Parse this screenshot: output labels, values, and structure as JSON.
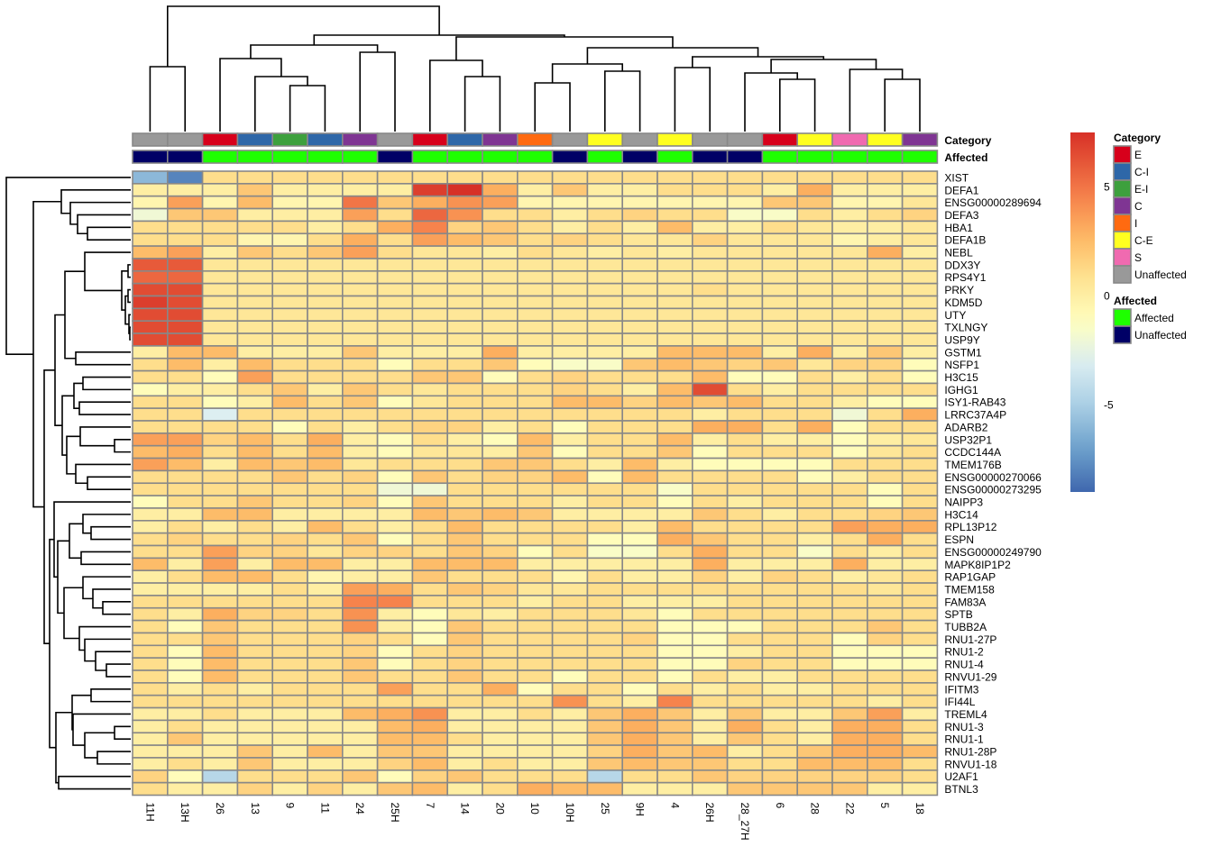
{
  "chart_data": {
    "type": "heatmap",
    "title": "",
    "columns": [
      "11H",
      "13H",
      "26",
      "13",
      "9",
      "11",
      "24",
      "25H",
      "7",
      "14",
      "20",
      "10",
      "10H",
      "25",
      "9H",
      "4",
      "26H",
      "28_27H",
      "6",
      "28",
      "22",
      "5",
      "18"
    ],
    "rows": [
      "XIST",
      "DEFA1",
      "ENSG00000289694",
      "DEFA3",
      "HBA1",
      "DEFA1B",
      "NEBL",
      "DDX3Y",
      "RPS4Y1",
      "PRKY",
      "KDM5D",
      "UTY",
      "TXLNGY",
      "USP9Y",
      "GSTM1",
      "NSFP1",
      "H3C15",
      "IGHG1",
      "ISY1-RAB43",
      "LRRC37A4P",
      "ADARB2",
      "USP32P1",
      "CCDC144A",
      "TMEM176B",
      "ENSG00000270066",
      "ENSG00000273295",
      "NAIPP3",
      "H3C14",
      "RPL13P12",
      "ESPN",
      "ENSG00000249790",
      "MAPK8IP1P2",
      "RAP1GAP",
      "TMEM158",
      "FAM83A",
      "SPTB",
      "TUBB2A",
      "RNU1-27P",
      "RNU1-2",
      "RNU1-4",
      "RNVU1-29",
      "IFITM3",
      "IFI44L",
      "TREML4",
      "RNU1-3",
      "RNU1-1",
      "RNU1-28P",
      "RNVU1-18",
      "U2AF1",
      "BTNL3"
    ],
    "values": [
      [
        -6,
        -8,
        1,
        1,
        1,
        1,
        1,
        1,
        1,
        1,
        1,
        1,
        1,
        1,
        1,
        1,
        1,
        1,
        1,
        1,
        1,
        1,
        1
      ],
      [
        0,
        0,
        0,
        2,
        0,
        0,
        0,
        0,
        7,
        7.5,
        3,
        0,
        2,
        0,
        0,
        1,
        1,
        1,
        0,
        3,
        0,
        0,
        0
      ],
      [
        -0.5,
        3.5,
        -0.5,
        2.5,
        -0.5,
        -0.5,
        5,
        2,
        3,
        4,
        3.5,
        -0.5,
        -0.5,
        -0.5,
        -0.5,
        -0.5,
        -0.5,
        -0.5,
        2,
        2,
        -0.5,
        -0.5,
        0.5
      ],
      [
        -2,
        2,
        2,
        0,
        0,
        0,
        3.5,
        1,
        5.5,
        4,
        1,
        1,
        0,
        1,
        1.5,
        1,
        1,
        -1.5,
        -1.5,
        1,
        0,
        1,
        1.5
      ],
      [
        1,
        1,
        1,
        1,
        1,
        0,
        1,
        3,
        4.5,
        1.5,
        2,
        1,
        0,
        1,
        0,
        2.5,
        0,
        0,
        1,
        0.5,
        0,
        0,
        0.5
      ],
      [
        1,
        1,
        1,
        -0.5,
        -0.5,
        1,
        3,
        1,
        3.5,
        2.5,
        2,
        1,
        1.5,
        1,
        0.5,
        0.5,
        1.5,
        0.5,
        0.5,
        0.5,
        -0.5,
        0,
        0.5
      ],
      [
        2.5,
        3.5,
        0,
        2,
        1,
        2,
        3.5,
        1,
        0.5,
        0.5,
        0,
        1,
        0.5,
        0,
        0.5,
        0,
        0.5,
        0.5,
        0.5,
        0.5,
        0.5,
        3,
        0
      ],
      [
        6,
        6,
        0.5,
        0.5,
        0.5,
        0.5,
        0.5,
        0.5,
        0.5,
        0.5,
        0.5,
        0.5,
        0.5,
        0.5,
        0.5,
        0.5,
        0.5,
        0.5,
        0.5,
        0.5,
        0.5,
        0.5,
        0.5
      ],
      [
        5.5,
        5.5,
        0.5,
        0.5,
        0.5,
        0.5,
        0.5,
        0.5,
        0.5,
        0.5,
        0.5,
        0.5,
        0.5,
        0.5,
        0.5,
        0.5,
        0.5,
        0.5,
        0.5,
        0.5,
        0.5,
        0.5,
        0.5
      ],
      [
        6.5,
        6.5,
        0.5,
        0.5,
        0.5,
        0.5,
        0.5,
        0.5,
        0.5,
        0.5,
        0.5,
        0.5,
        0.5,
        0.5,
        0.5,
        0.5,
        1,
        0.5,
        0.5,
        0.5,
        0.5,
        0.5,
        0.5
      ],
      [
        7,
        6.5,
        0.5,
        0.5,
        0.5,
        0.5,
        0.5,
        0.5,
        0.5,
        0.5,
        0.5,
        0.5,
        0.5,
        0.5,
        0.5,
        0.5,
        0.5,
        0.5,
        0.5,
        0.5,
        0.5,
        0.5,
        0.5
      ],
      [
        6.5,
        6.5,
        0.5,
        0.5,
        0.5,
        0.5,
        0.5,
        0.5,
        0.5,
        0.5,
        0.5,
        0.5,
        0.5,
        0.5,
        0.5,
        0.5,
        0.5,
        0.5,
        0.5,
        0.5,
        0.5,
        0.5,
        0.5
      ],
      [
        6.5,
        6.5,
        0.5,
        0.5,
        0.5,
        0.5,
        0.5,
        0.5,
        0.5,
        0.5,
        0.5,
        0.5,
        0.5,
        0.5,
        0.5,
        0.5,
        0.5,
        0.5,
        0.5,
        0.5,
        0.5,
        0.5,
        0.5
      ],
      [
        6.5,
        6.5,
        0.5,
        0.5,
        0.5,
        0.5,
        0.5,
        0.5,
        0.5,
        0.5,
        0.5,
        0.5,
        0.5,
        0.5,
        0.5,
        0.5,
        0.5,
        0.5,
        0.5,
        0.5,
        0.5,
        0.5,
        0.5
      ],
      [
        0,
        2.5,
        2.5,
        0,
        0,
        0,
        2,
        0,
        0,
        0,
        3,
        0,
        0,
        0,
        0,
        2.5,
        2.5,
        2.5,
        0,
        3,
        0,
        2,
        0
      ],
      [
        1,
        2.5,
        0,
        2.5,
        1,
        1,
        1,
        -1,
        1,
        1,
        2,
        -1,
        -1.5,
        -1.5,
        2,
        2.5,
        2,
        1.5,
        2,
        0.5,
        1.5,
        1.5,
        -1
      ],
      [
        1,
        1,
        -1,
        3.5,
        1,
        1,
        1,
        1,
        2,
        2,
        -1,
        1,
        1.5,
        1,
        1,
        1,
        2.5,
        -1,
        -1,
        1,
        0,
        1,
        -1
      ],
      [
        -1,
        0,
        0,
        1,
        2,
        0,
        2,
        1,
        0.5,
        1,
        1,
        1,
        1.5,
        1,
        0,
        2.5,
        6.5,
        1,
        0,
        1,
        1,
        1,
        1
      ],
      [
        1,
        1,
        -1,
        0,
        2.5,
        1,
        2,
        -1,
        0.5,
        1,
        1,
        1,
        2.5,
        2.5,
        1.5,
        2.5,
        2,
        2.5,
        1,
        1,
        0,
        -1,
        -1
      ],
      [
        1,
        1,
        -3,
        1,
        1,
        1,
        1,
        1,
        1,
        1,
        1,
        1,
        1,
        1,
        1,
        1,
        0,
        1,
        1,
        1,
        -2,
        1,
        3
      ],
      [
        1,
        1,
        1,
        1,
        -1,
        1,
        0,
        1,
        1.5,
        1.5,
        0,
        1,
        -1,
        1,
        1,
        1,
        3,
        3,
        1,
        3,
        -1,
        1,
        1
      ],
      [
        3.5,
        3.5,
        1.5,
        2.5,
        1,
        3,
        0,
        -1,
        1,
        0,
        -1,
        2.5,
        0,
        1,
        1,
        2.5,
        0,
        1,
        0,
        0,
        -1,
        0,
        0.5
      ],
      [
        2.5,
        3,
        1,
        2.5,
        1,
        2.5,
        0,
        -1,
        0.5,
        0.5,
        0,
        2,
        -1,
        1,
        1,
        2,
        -1,
        1,
        1,
        1,
        -1,
        0.5,
        1
      ],
      [
        3.5,
        2.5,
        0,
        2.5,
        2,
        2.5,
        0.5,
        1,
        1,
        1,
        2,
        2,
        1,
        0,
        2.5,
        0,
        -1,
        -1,
        -1,
        -1,
        1,
        1,
        1
      ],
      [
        1,
        1,
        1,
        1,
        2,
        1,
        1.5,
        -1,
        2,
        1,
        1.5,
        1.5,
        2.5,
        -1,
        2.5,
        1,
        1,
        1,
        1,
        -1,
        0,
        1,
        1
      ],
      [
        1,
        1,
        1,
        1,
        1,
        1,
        1,
        -2,
        -2,
        1,
        1,
        1,
        1,
        1,
        1,
        -1.5,
        1,
        1,
        1,
        1,
        1,
        -1,
        1
      ],
      [
        -1,
        1,
        1,
        2,
        1,
        1,
        1.5,
        -1,
        2,
        1,
        1,
        1,
        0,
        1,
        1,
        -1,
        1,
        0,
        1,
        1,
        1,
        -1,
        1
      ],
      [
        0,
        0,
        2.5,
        2.5,
        0,
        0,
        0,
        0,
        2.5,
        2,
        2.5,
        2,
        0,
        0,
        0,
        0,
        2,
        1,
        0,
        1,
        1,
        1.5,
        2
      ],
      [
        0,
        1,
        0,
        1,
        0,
        2.5,
        1,
        0,
        1,
        2.5,
        1,
        1,
        1,
        1,
        0,
        2.5,
        1,
        1,
        1,
        1,
        3.5,
        3,
        3
      ],
      [
        1,
        1.5,
        1,
        1,
        1.5,
        1,
        2,
        -1,
        1,
        2,
        1,
        1,
        1,
        -1,
        -1,
        3,
        2,
        1,
        1,
        0,
        1,
        3,
        1
      ],
      [
        1,
        1,
        3.5,
        1.5,
        1.5,
        0.5,
        1.5,
        1.5,
        1,
        2,
        1.5,
        -1,
        1,
        -1.5,
        -1.5,
        1,
        3,
        1,
        1,
        -1.5,
        1,
        0,
        1
      ],
      [
        2.5,
        0,
        3.5,
        0,
        2.5,
        2.5,
        0,
        0,
        2.5,
        2.5,
        2.5,
        0,
        0,
        0,
        0,
        0,
        3,
        0,
        0,
        0,
        3,
        0,
        0
      ],
      [
        0,
        1,
        2.5,
        2.5,
        1,
        -0.5,
        0,
        0,
        2,
        1,
        1,
        1,
        -0.5,
        1,
        0,
        0,
        1.5,
        0,
        1.5,
        1,
        0,
        0.5,
        1
      ],
      [
        0,
        0,
        0,
        0,
        1,
        0,
        3.5,
        3,
        1,
        2,
        1.5,
        0.5,
        0.5,
        1,
        1,
        1,
        1,
        1,
        1,
        1,
        1,
        0.5,
        1
      ],
      [
        1,
        1,
        1,
        1,
        1,
        1,
        4.5,
        4.5,
        1,
        1,
        1,
        0,
        1,
        1,
        0,
        0,
        0,
        1,
        1,
        1,
        1,
        1,
        1
      ],
      [
        1,
        0,
        3,
        1.5,
        1.5,
        1,
        4,
        0,
        -1,
        0.5,
        0,
        1,
        1,
        1,
        0.5,
        -1,
        1,
        1,
        1,
        1,
        1,
        1,
        1
      ],
      [
        1,
        -1,
        2,
        1,
        1,
        1,
        4,
        0,
        -1,
        2,
        1,
        1,
        1,
        1,
        1,
        -1,
        -1,
        -1,
        1,
        1,
        1,
        2,
        1
      ],
      [
        1,
        1,
        2,
        1,
        1,
        1,
        1.5,
        1,
        -1,
        2,
        1,
        1,
        1,
        1,
        1.5,
        -1,
        -1,
        1,
        1,
        1,
        -1,
        1.5,
        1
      ],
      [
        1,
        -1,
        2.5,
        1,
        1,
        1,
        1.5,
        -1,
        1,
        1.5,
        1,
        1,
        1,
        1,
        1,
        -1,
        -1,
        0,
        1,
        1,
        -1,
        -1,
        -1
      ],
      [
        1,
        -1,
        2.5,
        1,
        1,
        1,
        2,
        -1,
        1,
        1.5,
        1,
        1,
        1,
        1,
        1,
        -1,
        -1,
        1.5,
        1,
        1,
        -1,
        -1,
        -1
      ],
      [
        1,
        -1,
        2.5,
        1,
        1,
        1,
        2,
        1,
        1,
        2,
        1,
        1,
        -1,
        1,
        1,
        -1,
        1,
        0,
        0,
        1,
        1,
        1,
        1
      ],
      [
        1,
        0,
        1,
        0,
        1,
        1,
        1,
        3.5,
        1,
        1,
        3,
        -1,
        1,
        1,
        -1,
        1,
        0,
        1,
        0,
        0,
        1,
        1,
        1
      ],
      [
        1,
        1,
        1,
        1,
        1,
        1,
        1,
        1,
        1,
        1,
        1,
        1,
        4,
        1,
        0,
        4.5,
        1,
        1,
        1,
        1,
        1,
        0,
        1
      ],
      [
        0,
        0,
        1,
        0,
        0,
        0,
        2.5,
        3,
        4,
        0,
        0,
        1,
        0,
        2,
        3,
        2,
        0,
        2,
        0,
        0,
        2,
        3.5,
        0
      ],
      [
        0,
        1,
        0,
        0,
        0,
        0,
        0,
        2.5,
        3,
        0,
        0,
        0,
        0,
        2,
        3,
        2,
        0,
        3,
        1,
        0,
        3,
        3,
        1
      ],
      [
        0,
        2,
        0,
        0,
        0,
        0,
        0,
        2.5,
        2.5,
        1,
        0,
        0,
        0,
        2,
        3,
        2,
        0,
        2,
        1,
        0,
        3,
        3,
        1
      ],
      [
        0,
        0,
        0,
        2,
        0,
        2.5,
        0,
        2,
        2,
        0,
        0,
        0,
        0,
        1.5,
        3,
        2,
        2.5,
        0,
        1,
        2,
        3,
        3,
        2.5
      ],
      [
        0,
        1,
        0,
        2,
        0,
        0,
        0,
        1.5,
        2.5,
        0,
        1,
        0,
        0,
        2,
        2.5,
        2,
        2,
        1,
        1,
        2.5,
        2.5,
        2.5,
        1
      ],
      [
        1.5,
        -1,
        -4.5,
        1,
        1,
        1,
        2,
        -1,
        1.5,
        2,
        1,
        1,
        1,
        -4.5,
        1,
        1,
        2,
        1.5,
        1.5,
        1.5,
        1.5,
        1.5,
        1
      ],
      [
        1,
        0,
        0,
        1.5,
        0,
        1.5,
        0,
        2,
        2.5,
        0,
        1,
        3,
        2.5,
        2.5,
        0,
        0,
        0,
        2,
        2,
        2,
        2,
        0,
        0
      ]
    ],
    "annotations": {
      "Category": [
        "Unaffected",
        "Unaffected",
        "E",
        "C-I",
        "E-I",
        "C-I",
        "C",
        "Unaffected",
        "E",
        "C-I",
        "C",
        "I",
        "Unaffected",
        "C-E",
        "Unaffected",
        "C-E",
        "Unaffected",
        "Unaffected",
        "E",
        "C-E",
        "S",
        "C-E",
        "C"
      ],
      "Affected": [
        "Unaffected",
        "Unaffected",
        "Affected",
        "Affected",
        "Affected",
        "Affected",
        "Affected",
        "Unaffected",
        "Affected",
        "Affected",
        "Affected",
        "Affected",
        "Unaffected",
        "Affected",
        "Unaffected",
        "Affected",
        "Unaffected",
        "Unaffected",
        "Affected",
        "Affected",
        "Affected",
        "Affected",
        "Affected"
      ]
    },
    "annotation_labels": [
      "Category",
      "Affected"
    ],
    "legend": {
      "colorbar": {
        "ticks": [
          5,
          0,
          -5
        ],
        "range": [
          -9,
          7.5
        ]
      },
      "category": {
        "title": "Category",
        "entries": [
          {
            "label": "E",
            "color": "#D7001B"
          },
          {
            "label": "C-I",
            "color": "#2E67A8"
          },
          {
            "label": "E-I",
            "color": "#3DA03D"
          },
          {
            "label": "C",
            "color": "#7F3593"
          },
          {
            "label": "I",
            "color": "#FF6A10"
          },
          {
            "label": "C-E",
            "color": "#FFFF20"
          },
          {
            "label": "S",
            "color": "#F06AB0"
          },
          {
            "label": "Unaffected",
            "color": "#999999"
          }
        ]
      },
      "affected": {
        "title": "Affected",
        "entries": [
          {
            "label": "Affected",
            "color": "#1EFF00"
          },
          {
            "label": "Unaffected",
            "color": "#000066"
          }
        ]
      }
    },
    "palette": [
      "#3F67AE",
      "#6DA1CC",
      "#AACFE5",
      "#DDEFF1",
      "#FFFFBF",
      "#FEE391",
      "#FDB562",
      "#F6834C",
      "#D73027"
    ],
    "cell_border_color": "#888888"
  }
}
